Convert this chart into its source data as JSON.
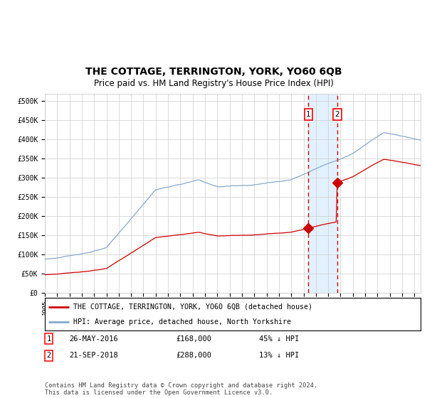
{
  "title": "THE COTTAGE, TERRINGTON, YORK, YO60 6QB",
  "subtitle": "Price paid vs. HM Land Registry's House Price Index (HPI)",
  "red_label": "THE COTTAGE, TERRINGTON, YORK, YO60 6QB (detached house)",
  "blue_label": "HPI: Average price, detached house, North Yorkshire",
  "sale1_date": "26-MAY-2016",
  "sale1_price": 168000,
  "sale1_pct": "45% ↓ HPI",
  "sale2_date": "21-SEP-2018",
  "sale2_price": 288000,
  "sale2_pct": "13% ↓ HPI",
  "sale1_year": 2016.4,
  "sale2_year": 2018.72,
  "footer": "Contains HM Land Registry data © Crown copyright and database right 2024.\nThis data is licensed under the Open Government Licence v3.0.",
  "ylim": [
    0,
    520000
  ],
  "xlim_start": 1995.0,
  "xlim_end": 2025.5,
  "grid_color": "#cccccc",
  "red_color": "#cc0000",
  "blue_line_color": "#88aacc",
  "title_fontsize": 10,
  "subtitle_fontsize": 8.5
}
